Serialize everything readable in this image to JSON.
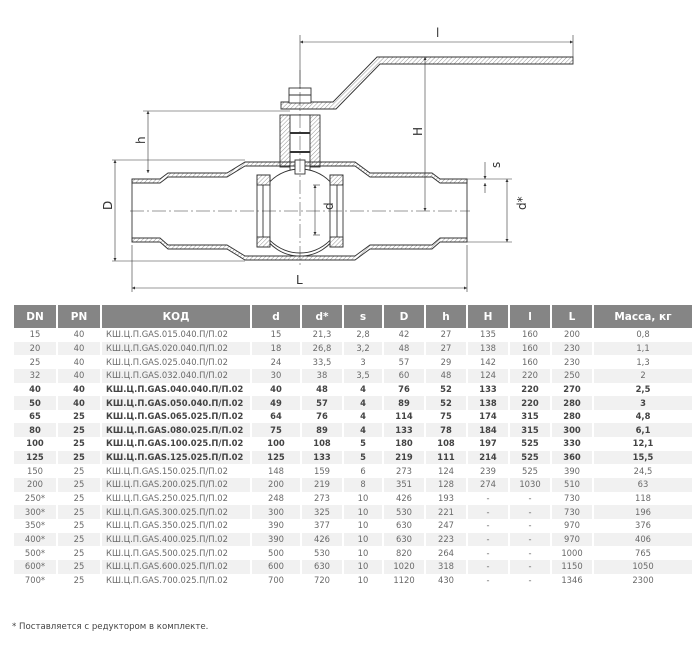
{
  "drawing": {
    "labels": {
      "l": "l",
      "H": "H",
      "h": "h",
      "D": "D",
      "L": "L",
      "d": "d",
      "d_star": "d*",
      "s": "s"
    }
  },
  "table": {
    "headers": [
      "DN",
      "PN",
      "КОД",
      "d",
      "d*",
      "s",
      "D",
      "h",
      "H",
      "l",
      "L",
      "Масса, кг"
    ],
    "bold_rows": [
      "40",
      "50",
      "65",
      "80",
      "100",
      "125"
    ],
    "rows": [
      [
        "15",
        "40",
        "КШ.Ц.П.GAS.015.040.П/П.02",
        "15",
        "21,3",
        "2,8",
        "42",
        "27",
        "135",
        "160",
        "200",
        "0,8"
      ],
      [
        "20",
        "40",
        "КШ.Ц.П.GAS.020.040.П/П.02",
        "18",
        "26,8",
        "3,2",
        "48",
        "27",
        "138",
        "160",
        "230",
        "1,1"
      ],
      [
        "25",
        "40",
        "КШ.Ц.П.GAS.025.040.П/П.02",
        "24",
        "33,5",
        "3",
        "57",
        "29",
        "142",
        "160",
        "230",
        "1,3"
      ],
      [
        "32",
        "40",
        "КШ.Ц.П.GAS.032.040.П/П.02",
        "30",
        "38",
        "3,5",
        "60",
        "48",
        "124",
        "220",
        "250",
        "2"
      ],
      [
        "40",
        "40",
        "КШ.Ц.П.GAS.040.040.П/П.02",
        "40",
        "48",
        "4",
        "76",
        "52",
        "133",
        "220",
        "270",
        "2,5"
      ],
      [
        "50",
        "40",
        "КШ.Ц.П.GAS.050.040.П/П.02",
        "49",
        "57",
        "4",
        "89",
        "52",
        "138",
        "220",
        "280",
        "3"
      ],
      [
        "65",
        "25",
        "КШ.Ц.П.GAS.065.025.П/П.02",
        "64",
        "76",
        "4",
        "114",
        "75",
        "174",
        "315",
        "280",
        "4,8"
      ],
      [
        "80",
        "25",
        "КШ.Ц.П.GAS.080.025.П/П.02",
        "75",
        "89",
        "4",
        "133",
        "78",
        "184",
        "315",
        "300",
        "6,1"
      ],
      [
        "100",
        "25",
        "КШ.Ц.П.GAS.100.025.П/П.02",
        "100",
        "108",
        "5",
        "180",
        "108",
        "197",
        "525",
        "330",
        "12,1"
      ],
      [
        "125",
        "25",
        "КШ.Ц.П.GAS.125.025.П/П.02",
        "125",
        "133",
        "5",
        "219",
        "111",
        "214",
        "525",
        "360",
        "15,5"
      ],
      [
        "150",
        "25",
        "КШ.Ц.П.GAS.150.025.П/П.02",
        "148",
        "159",
        "6",
        "273",
        "124",
        "239",
        "525",
        "390",
        "24,5"
      ],
      [
        "200",
        "25",
        "КШ.Ц.П.GAS.200.025.П/П.02",
        "200",
        "219",
        "8",
        "351",
        "128",
        "274",
        "1030",
        "510",
        "63"
      ],
      [
        "250*",
        "25",
        "КШ.Ц.П.GAS.250.025.П/П.02",
        "248",
        "273",
        "10",
        "426",
        "193",
        "-",
        "-",
        "730",
        "118"
      ],
      [
        "300*",
        "25",
        "КШ.Ц.П.GAS.300.025.П/П.02",
        "300",
        "325",
        "10",
        "530",
        "221",
        "-",
        "-",
        "730",
        "196"
      ],
      [
        "350*",
        "25",
        "КШ.Ц.П.GAS.350.025.П/П.02",
        "390",
        "377",
        "10",
        "630",
        "247",
        "-",
        "-",
        "970",
        "376"
      ],
      [
        "400*",
        "25",
        "КШ.Ц.П.GAS.400.025.П/П.02",
        "390",
        "426",
        "10",
        "630",
        "223",
        "-",
        "-",
        "970",
        "406"
      ],
      [
        "500*",
        "25",
        "КШ.Ц.П.GAS.500.025.П/П.02",
        "500",
        "530",
        "10",
        "820",
        "264",
        "-",
        "-",
        "1000",
        "765"
      ],
      [
        "600*",
        "25",
        "КШ.Ц.П.GAS.600.025.П/П.02",
        "600",
        "630",
        "10",
        "1020",
        "318",
        "-",
        "-",
        "1150",
        "1050"
      ],
      [
        "700*",
        "25",
        "КШ.Ц.П.GAS.700.025.П/П.02",
        "700",
        "720",
        "10",
        "1120",
        "430",
        "-",
        "-",
        "1346",
        "2300"
      ]
    ]
  },
  "footnote": "* Поставляется с редуктором в комплекте.",
  "colors": {
    "header_bg": "#858585",
    "alt_row_bg": "#f1f1f1"
  }
}
